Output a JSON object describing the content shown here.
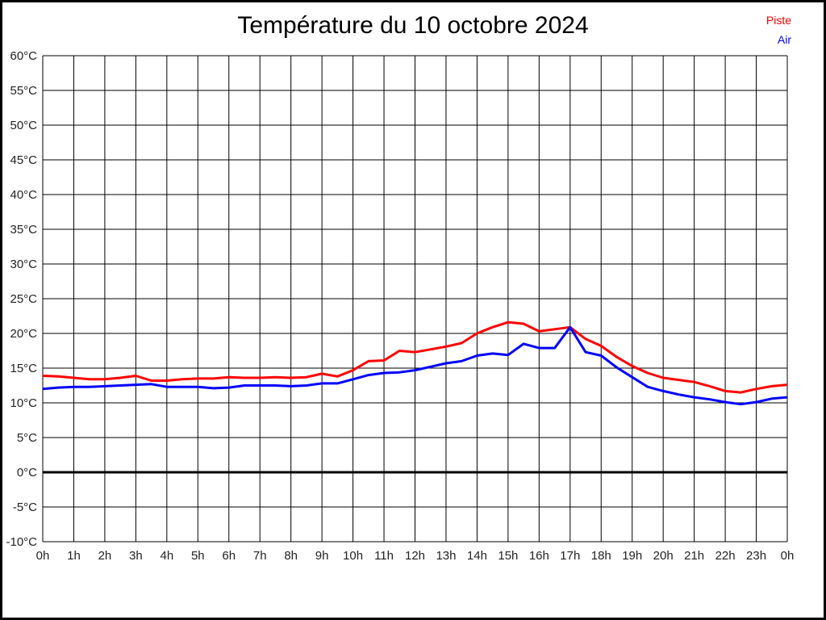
{
  "page": {
    "background": "#ffffff",
    "frame_border_color": "#000000"
  },
  "chart_data": {
    "type": "line",
    "title": "Température du 10 octobre 2024",
    "xlabel": "",
    "ylabel": "",
    "xlim": [
      0,
      24
    ],
    "ylim": [
      -10,
      60
    ],
    "y_step": 5,
    "x_step_hours": 1,
    "grid": true,
    "zero_line_bold": true,
    "legend_position": "top-right",
    "axis_color": "#000000",
    "tick_label_color": "#222222",
    "x_tick_labels": [
      "0h",
      "1h",
      "2h",
      "3h",
      "4h",
      "5h",
      "6h",
      "7h",
      "8h",
      "9h",
      "10h",
      "11h",
      "12h",
      "13h",
      "14h",
      "15h",
      "16h",
      "17h",
      "18h",
      "19h",
      "20h",
      "21h",
      "22h",
      "23h",
      "0h"
    ],
    "y_tick_labels": [
      "60°C",
      "55°C",
      "50°C",
      "45°C",
      "40°C",
      "35°C",
      "30°C",
      "25°C",
      "20°C",
      "15°C",
      "10°C",
      "5°C",
      "0°C",
      "-5°C",
      "-10°C"
    ],
    "series": [
      {
        "name": "Piste",
        "color": "#ff0000",
        "x": [
          0,
          0.5,
          1,
          1.5,
          2,
          2.5,
          3,
          3.5,
          4,
          4.5,
          5,
          5.5,
          6,
          6.5,
          7,
          7.5,
          8,
          8.5,
          9,
          9.5,
          10,
          10.5,
          11,
          11.5,
          12,
          12.5,
          13,
          13.5,
          14,
          14.5,
          15,
          15.5,
          16,
          16.5,
          17,
          17.5,
          18,
          18.5,
          19,
          19.5,
          20,
          20.5,
          21,
          21.5,
          22,
          22.5,
          23,
          23.5,
          24
        ],
        "values": [
          13.9,
          13.8,
          13.6,
          13.4,
          13.4,
          13.6,
          13.9,
          13.2,
          13.2,
          13.4,
          13.5,
          13.5,
          13.7,
          13.6,
          13.6,
          13.7,
          13.6,
          13.7,
          14.2,
          13.8,
          14.7,
          16,
          16.1,
          17.5,
          17.3,
          17.7,
          18.1,
          18.6,
          20,
          20.9,
          21.6,
          21.4,
          20.3,
          20.6,
          20.9,
          19.2,
          18.2,
          16.6,
          15.3,
          14.3,
          13.6,
          13.3,
          13,
          12.4,
          11.7,
          11.5,
          12,
          12.4,
          12.6
        ]
      },
      {
        "name": "Air",
        "color": "#0000ff",
        "x": [
          0,
          0.5,
          1,
          1.5,
          2,
          2.5,
          3,
          3.5,
          4,
          4.5,
          5,
          5.5,
          6,
          6.5,
          7,
          7.5,
          8,
          8.5,
          9,
          9.5,
          10,
          10.5,
          11,
          11.5,
          12,
          12.5,
          13,
          13.5,
          14,
          14.5,
          15,
          15.5,
          16,
          16.5,
          17,
          17.5,
          18,
          18.5,
          19,
          19.5,
          20,
          20.5,
          21,
          21.5,
          22,
          22.5,
          23,
          23.5,
          24
        ],
        "values": [
          12,
          12.2,
          12.3,
          12.3,
          12.4,
          12.5,
          12.6,
          12.7,
          12.3,
          12.3,
          12.3,
          12.1,
          12.2,
          12.5,
          12.5,
          12.5,
          12.4,
          12.5,
          12.8,
          12.8,
          13.4,
          14,
          14.3,
          14.4,
          14.7,
          15.2,
          15.7,
          16,
          16.8,
          17.1,
          16.9,
          18.5,
          17.9,
          17.9,
          20.9,
          17.3,
          16.8,
          15.1,
          13.7,
          12.3,
          11.7,
          11.2,
          10.8,
          10.5,
          10.1,
          9.8,
          10.1,
          10.6,
          10.8
        ]
      }
    ]
  }
}
